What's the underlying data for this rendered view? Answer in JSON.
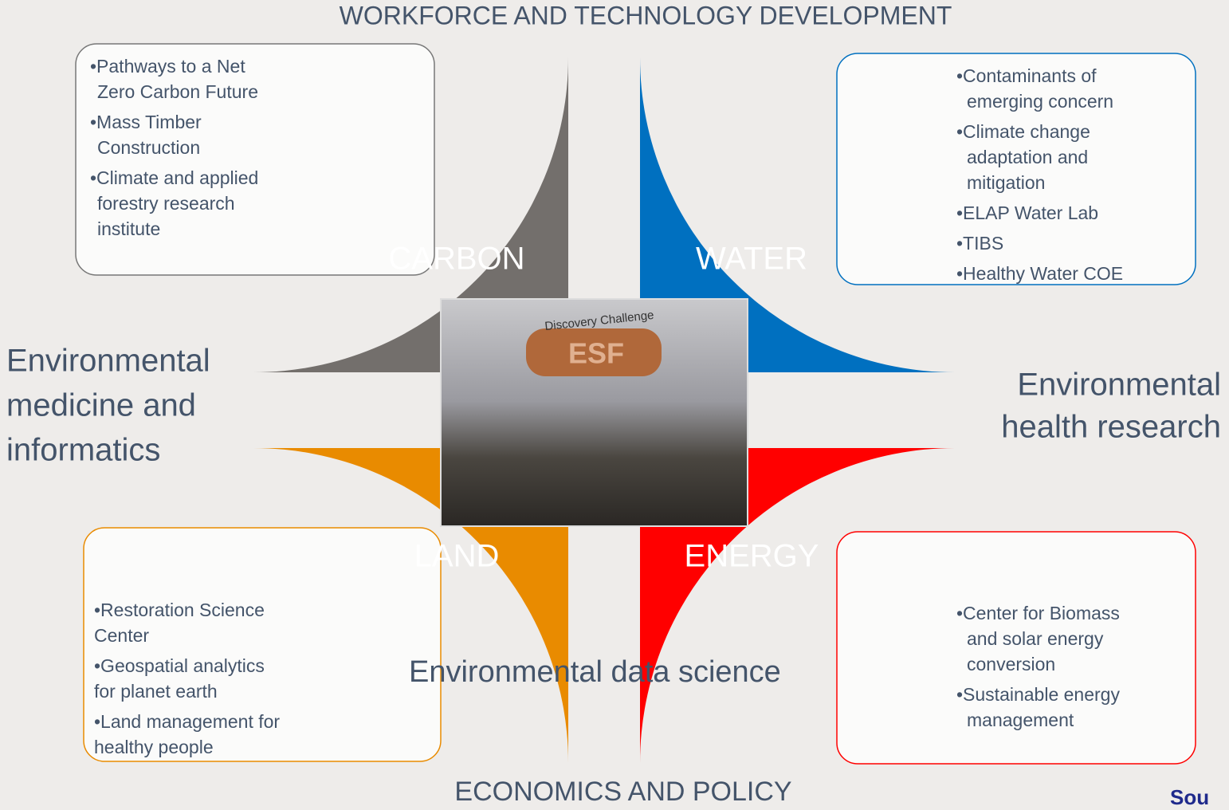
{
  "header": {
    "title": "WORKFORCE AND TECHNOLOGY DEVELOPMENT"
  },
  "footer": {
    "title": "ECONOMICS AND POLICY",
    "source": "Sou"
  },
  "side_labels": {
    "left": [
      "Environmental",
      "medicine and",
      "informatics"
    ],
    "right": [
      "Environmental",
      "health research"
    ],
    "center": "Environmental data science"
  },
  "photo": {
    "caption": "Discovery Challenge",
    "logo": "ESF"
  },
  "quadrants": [
    {
      "label": "CARBON",
      "color": "#736f6c",
      "items": [
        [
          "•Pathways to a Net",
          "Zero Carbon Future"
        ],
        [
          "•Mass Timber",
          "Construction"
        ],
        [
          "•Climate and applied",
          "forestry research",
          "institute"
        ]
      ]
    },
    {
      "label": "WATER",
      "color": "#0070c0",
      "items": [
        [
          "•Contaminants of",
          "emerging concern"
        ],
        [
          "•Climate change",
          "adaptation and",
          "mitigation"
        ],
        [
          "•ELAP Water Lab"
        ],
        [
          "•TIBS"
        ],
        [
          "•Healthy Water COE"
        ]
      ]
    },
    {
      "label": "LAND",
      "color": "#e98b00",
      "items": [
        [
          "•Restoration Science",
          "Center"
        ],
        [
          "•Geospatial analytics",
          "for planet earth"
        ],
        [
          "•Land management for",
          "healthy people"
        ]
      ]
    },
    {
      "label": "ENERGY",
      "color": "#ff0000",
      "items": [
        [
          "•Center for Biomass",
          "and solar energy",
          "conversion"
        ],
        [
          "•Sustainable energy",
          "management"
        ]
      ]
    }
  ]
}
